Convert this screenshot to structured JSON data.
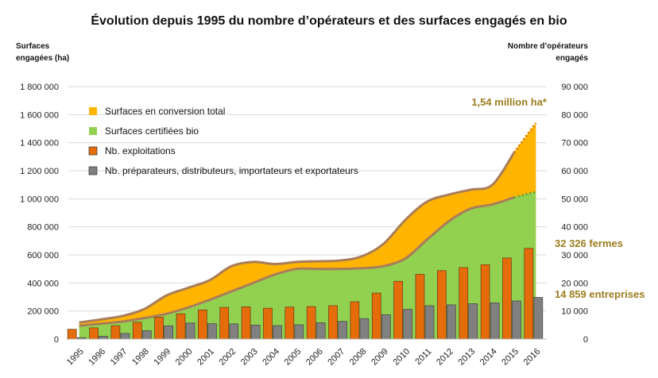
{
  "chart_data": {
    "type": "bar",
    "title": "Évolution depuis 1995 du nombre d’opérateurs et des surfaces engagés en bio",
    "ylabel_left": [
      "Surfaces",
      "engagées (ha)"
    ],
    "ylabel_right": [
      "Nombre d’opérateurs",
      "engagés"
    ],
    "ylim_left": [
      0,
      1800000
    ],
    "ylim_right": [
      0,
      90000
    ],
    "left_ticks": [
      "0",
      "200 000",
      "400 000",
      "600 000",
      "800 000",
      "1 000 000",
      "1 200 000",
      "1 400 000",
      "1 600 000",
      "1 800 000"
    ],
    "right_ticks": [
      "0",
      "10 000",
      "20 000",
      "30 000",
      "40 000",
      "50 000",
      "60 000",
      "70 000",
      "80 000",
      "90 000"
    ],
    "categories": [
      "1995",
      "1996",
      "1997",
      "1998",
      "1999",
      "2000",
      "2001",
      "2002",
      "2003",
      "2004",
      "2005",
      "2006",
      "2007",
      "2008",
      "2009",
      "2010",
      "2011",
      "2012",
      "2013",
      "2014",
      "2015",
      "2016"
    ],
    "series": [
      {
        "name": "Surfaces en conversion total",
        "kind": "area",
        "axis": "left",
        "color": "#ffb400",
        "values": [
          118000,
          140000,
          165000,
          215000,
          310000,
          365000,
          420000,
          520000,
          550000,
          535000,
          550000,
          555000,
          560000,
          590000,
          680000,
          850000,
          980000,
          1030000,
          1065000,
          1100000,
          1330000,
          1540000
        ]
      },
      {
        "name": "Surfaces certifiées bio",
        "kind": "area",
        "axis": "left",
        "color": "#92d050",
        "values": [
          95000,
          110000,
          125000,
          150000,
          180000,
          225000,
          280000,
          340000,
          400000,
          460000,
          500000,
          500000,
          500000,
          505000,
          520000,
          575000,
          710000,
          840000,
          930000,
          960000,
          1010000,
          1050000
        ]
      },
      {
        "name": "Nb. exploitations",
        "kind": "bar",
        "axis": "right",
        "color": "#e46c0a",
        "values": [
          3500,
          4000,
          4800,
          6000,
          7800,
          9000,
          10400,
          11300,
          11500,
          11000,
          11400,
          11600,
          11900,
          13300,
          16400,
          20600,
          23100,
          24400,
          25500,
          26500,
          28900,
          32326
        ]
      },
      {
        "name": "Nb. préparateurs, distributeurs, importateurs et exportateurs",
        "kind": "bar",
        "axis": "right",
        "color": "#808080",
        "values": [
          500,
          1000,
          2000,
          3000,
          4700,
          5700,
          5500,
          5400,
          5000,
          4800,
          5100,
          5800,
          6300,
          7300,
          8700,
          10600,
          11900,
          12200,
          12600,
          12900,
          13600,
          14859
        ]
      }
    ],
    "annotations": [
      {
        "text": "1,54 million ha*",
        "color": "#9c7d1e"
      },
      {
        "text": "32 326 fermes",
        "color": "#9c7d1e"
      },
      {
        "text": "14 859 entreprises",
        "color": "#9c7d1e"
      }
    ],
    "legend_position": "top-left",
    "grid": true
  }
}
